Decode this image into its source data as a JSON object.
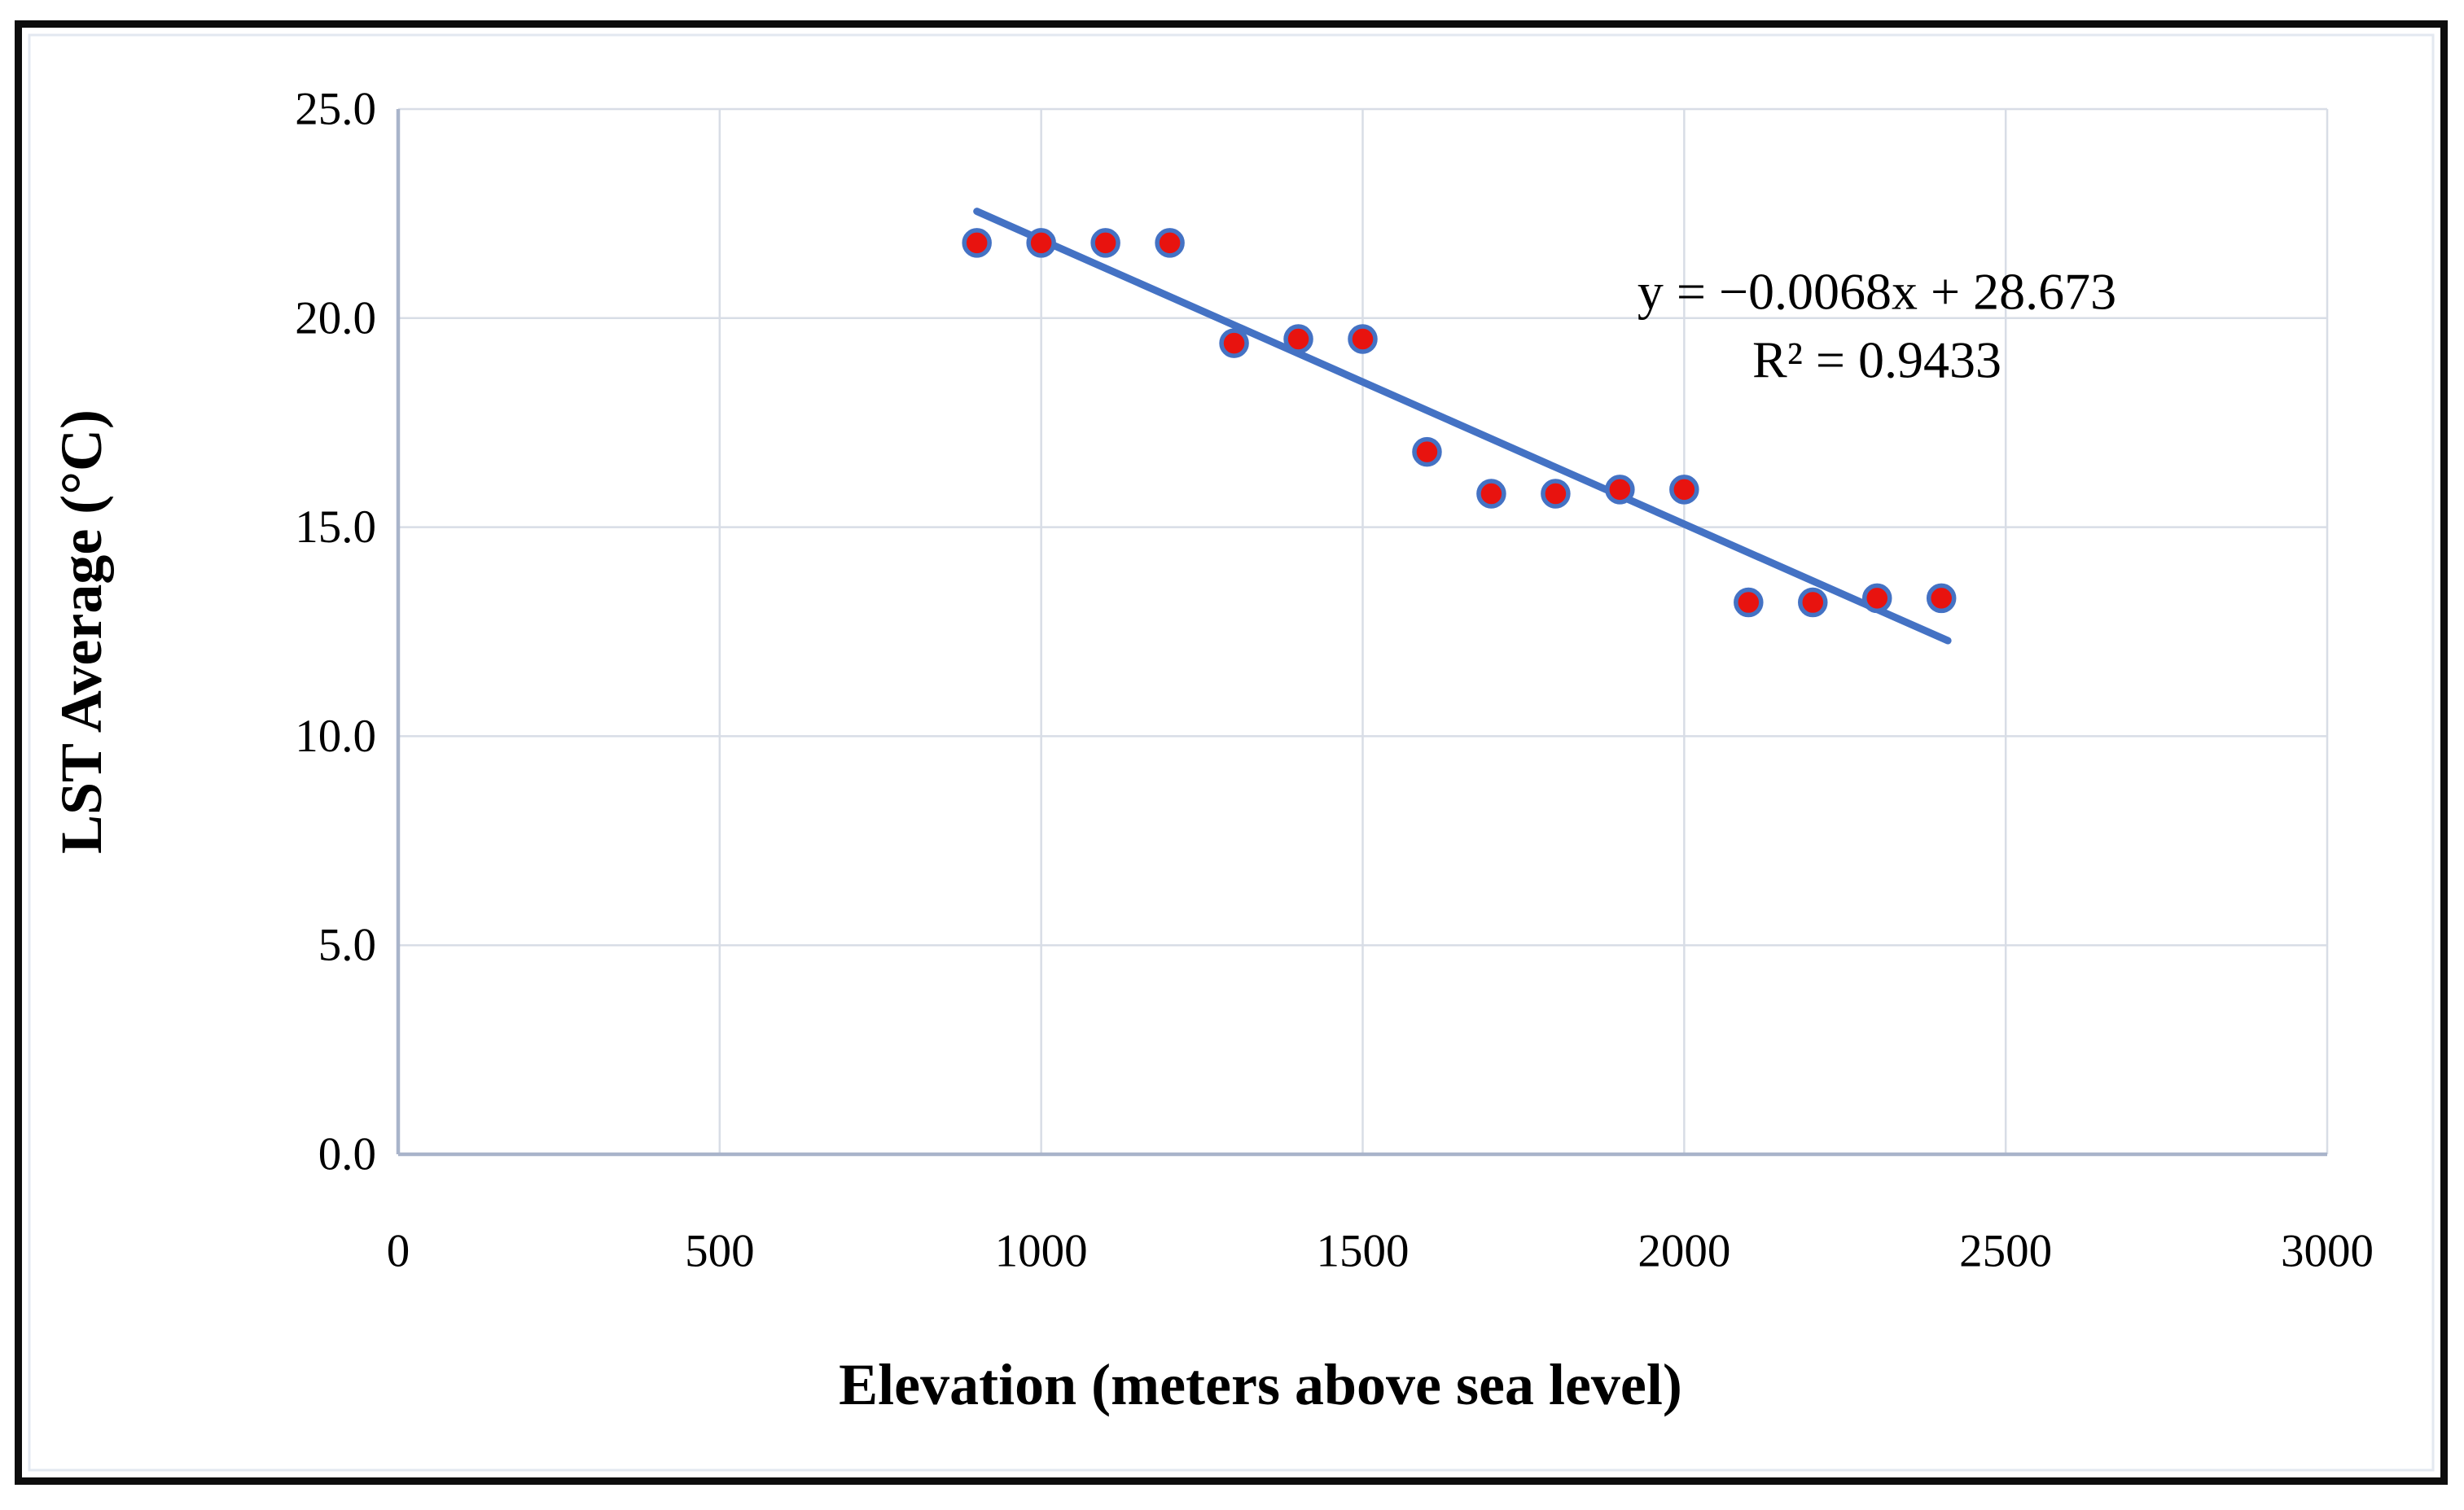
{
  "figure": {
    "y_axis_title": "LST Average (°C)",
    "x_axis_title": "Elevation (meters above sea level)",
    "equation_line1": "y = −0.0068x + 28.673",
    "equation_line2": "R² = 0.9433"
  },
  "chart_data": {
    "type": "scatter",
    "title": "",
    "xlabel": "Elevation (meters above sea level)",
    "ylabel": "LST Average (°C)",
    "xlim": [
      0,
      3000
    ],
    "ylim": [
      0,
      25
    ],
    "x_ticks": [
      0,
      500,
      1000,
      1500,
      2000,
      2500,
      3000
    ],
    "y_ticks": [
      0,
      5,
      10,
      15,
      20,
      25
    ],
    "y_tick_labels": [
      "0.0",
      "5.0",
      "10.0",
      "15.0",
      "20.0",
      "25.0"
    ],
    "grid": true,
    "legend": "none",
    "points": [
      [
        900,
        21.8
      ],
      [
        1000,
        21.8
      ],
      [
        1100,
        21.8
      ],
      [
        1200,
        21.8
      ],
      [
        1300,
        19.4
      ],
      [
        1400,
        19.5
      ],
      [
        1500,
        19.5
      ],
      [
        1600,
        16.8
      ],
      [
        1700,
        15.8
      ],
      [
        1800,
        15.8
      ],
      [
        1900,
        15.9
      ],
      [
        2000,
        15.9
      ],
      [
        2100,
        13.2
      ],
      [
        2200,
        13.2
      ],
      [
        2300,
        13.3
      ],
      [
        2400,
        13.3
      ]
    ],
    "trendline": {
      "slope": -0.0068,
      "intercept": 28.673,
      "x_start": 900,
      "x_end": 2410,
      "equation": "y = −0.0068x + 28.673",
      "r_squared": "R² = 0.9433"
    },
    "colors": {
      "marker_fill": "#e8130f",
      "marker_stroke": "#4472c4",
      "trendline": "#4472c4",
      "gridline": "#d8dde6",
      "axis_line": "#a9b4ca",
      "figure_border": "#0d0d0d",
      "inner_border": "#e3e8f0",
      "text": "#000000"
    }
  }
}
